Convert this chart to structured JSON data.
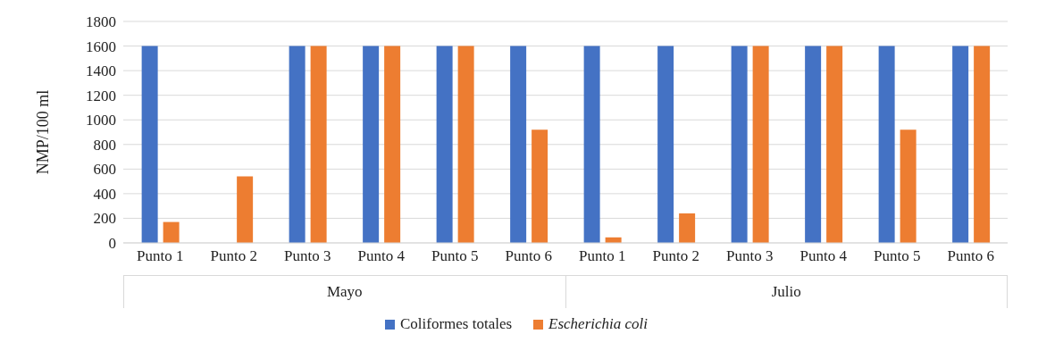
{
  "chart_data": {
    "type": "bar",
    "ylabel": "NMP/100 ml",
    "categories": [
      "Punto 1",
      "Punto 2",
      "Punto 3",
      "Punto 4",
      "Punto 5",
      "Punto 6",
      "Punto 1",
      "Punto 2",
      "Punto 3",
      "Punto 4",
      "Punto 5",
      "Punto 6"
    ],
    "series": [
      {
        "name": "Coliformes totales",
        "color": "#4472c4",
        "values": [
          1600,
          null,
          1600,
          1600,
          1600,
          1600,
          1600,
          1600,
          1600,
          1600,
          1600,
          1600
        ]
      },
      {
        "name": "Escherichia coli",
        "color": "#ed7d31",
        "values": [
          170,
          540,
          1600,
          1600,
          1600,
          920,
          45,
          240,
          1600,
          1600,
          920,
          1600
        ]
      }
    ],
    "annotations": [
      "Mayo",
      "Julio"
    ],
    "ylim": [
      0,
      1800
    ],
    "yticks": [
      0,
      200,
      400,
      600,
      800,
      1000,
      1200,
      1400,
      1600,
      1800
    ],
    "grid": "y",
    "legend": "bottom"
  }
}
